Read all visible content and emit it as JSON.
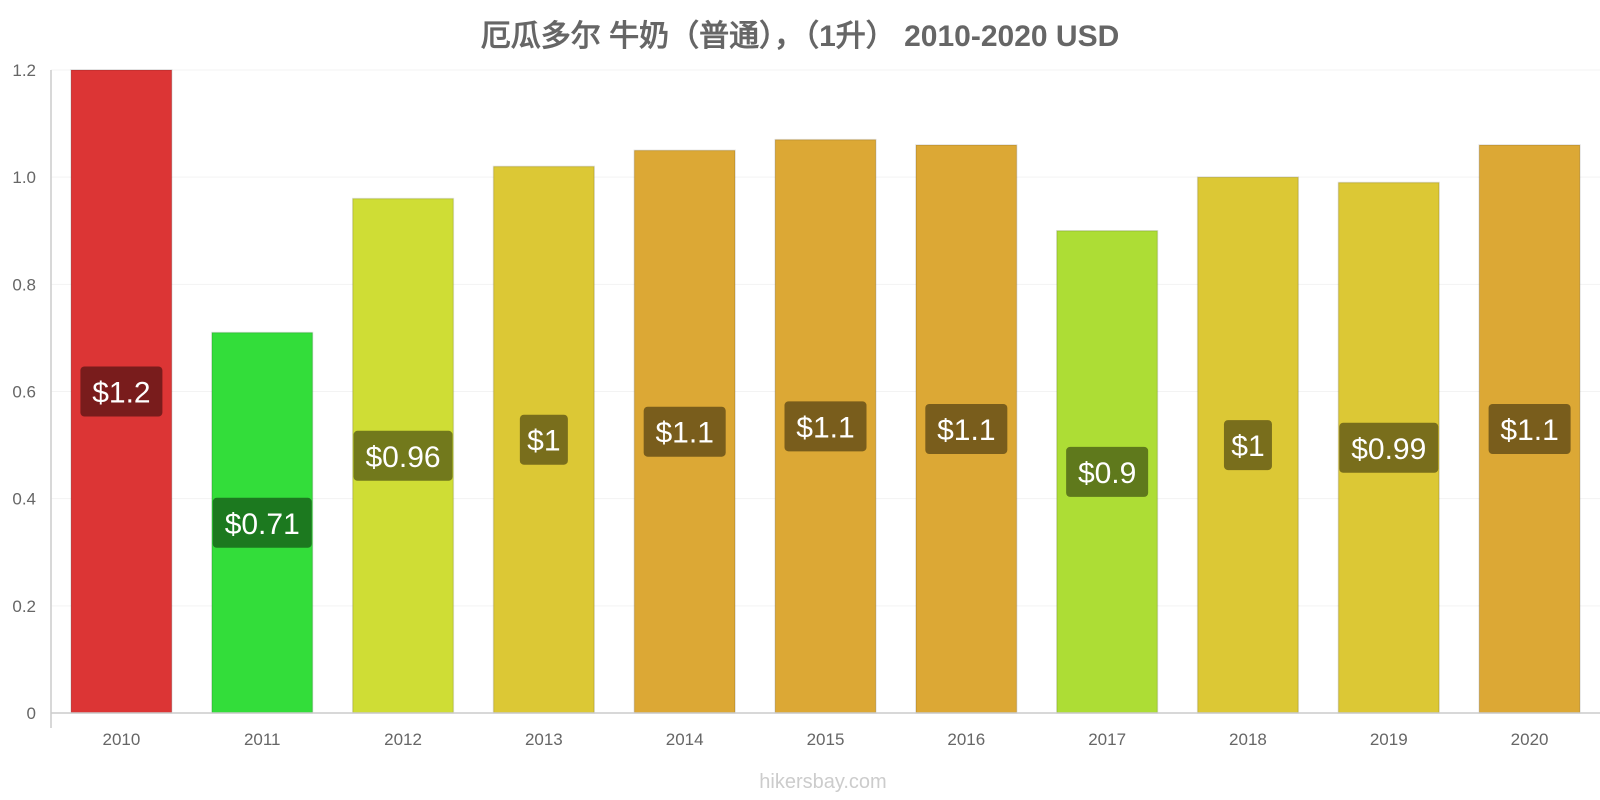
{
  "chart_data": {
    "type": "bar",
    "title": "厄瓜多尔 牛奶（普通），（1升） 2010-2020 USD",
    "categories": [
      "2010",
      "2011",
      "2012",
      "2013",
      "2014",
      "2015",
      "2016",
      "2017",
      "2018",
      "2019",
      "2020"
    ],
    "values": [
      1.2,
      0.71,
      0.96,
      1.02,
      1.05,
      1.07,
      1.06,
      0.9,
      1.0,
      0.99,
      1.06
    ],
    "data_labels": [
      "$1.2",
      "$0.71",
      "$0.96",
      "$1",
      "$1.1",
      "$1.1",
      "$1.1",
      "$0.9",
      "$1",
      "$0.99",
      "$1.1"
    ],
    "bar_colors": [
      "#dc3535",
      "#33dd3a",
      "#cfdd35",
      "#dcc835",
      "#dca835",
      "#dca835",
      "#dca835",
      "#addd35",
      "#dcc835",
      "#dcc835",
      "#dca835"
    ],
    "label_bg_colors": [
      "#6e1a1a",
      "#1a6e1d",
      "#676e1a",
      "#6e641a",
      "#6e541a",
      "#6e541a",
      "#6e541a",
      "#566e1a",
      "#6e641a",
      "#6e641a",
      "#6e541a"
    ],
    "y_ticks": [
      "0",
      "0.2",
      "0.4",
      "0.6",
      "0.8",
      "1.0",
      "1.2"
    ],
    "ylim": [
      0,
      1.2
    ],
    "grid": true,
    "xlabel": "",
    "ylabel": ""
  },
  "credit": "hikersbay.com"
}
